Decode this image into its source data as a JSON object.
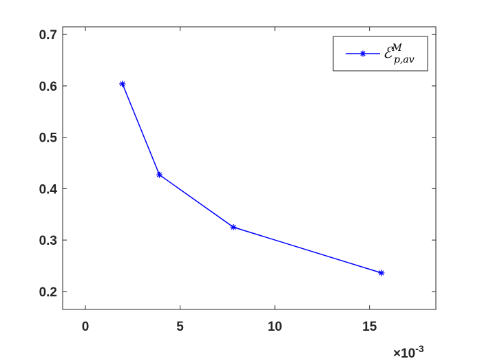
{
  "chart_data": {
    "type": "line",
    "x_unit_multiplier": {
      "base": "×10",
      "exponent": "-3"
    },
    "xlim": [
      -1.2,
      18.5
    ],
    "ylim": [
      0.165,
      0.715
    ],
    "x_ticks": [
      0,
      5,
      10,
      15
    ],
    "y_ticks": [
      0.2,
      0.3,
      0.4,
      0.5,
      0.6,
      0.7
    ],
    "x_tick_labels": [
      "0",
      "5",
      "10",
      "15"
    ],
    "y_tick_labels": [
      "0.2",
      "0.3",
      "0.4",
      "0.5",
      "0.6",
      "0.7"
    ],
    "grid": false,
    "legend_position": "top-right",
    "series": [
      {
        "legend": {
          "script": "ℰ",
          "superscript": "M",
          "subscript": "p,av"
        },
        "color": "#0000ff",
        "marker": "asterisk",
        "x": [
          1.9531,
          3.9063,
          7.8125,
          15.625
        ],
        "y": [
          0.604,
          0.427,
          0.325,
          0.236
        ]
      }
    ]
  }
}
